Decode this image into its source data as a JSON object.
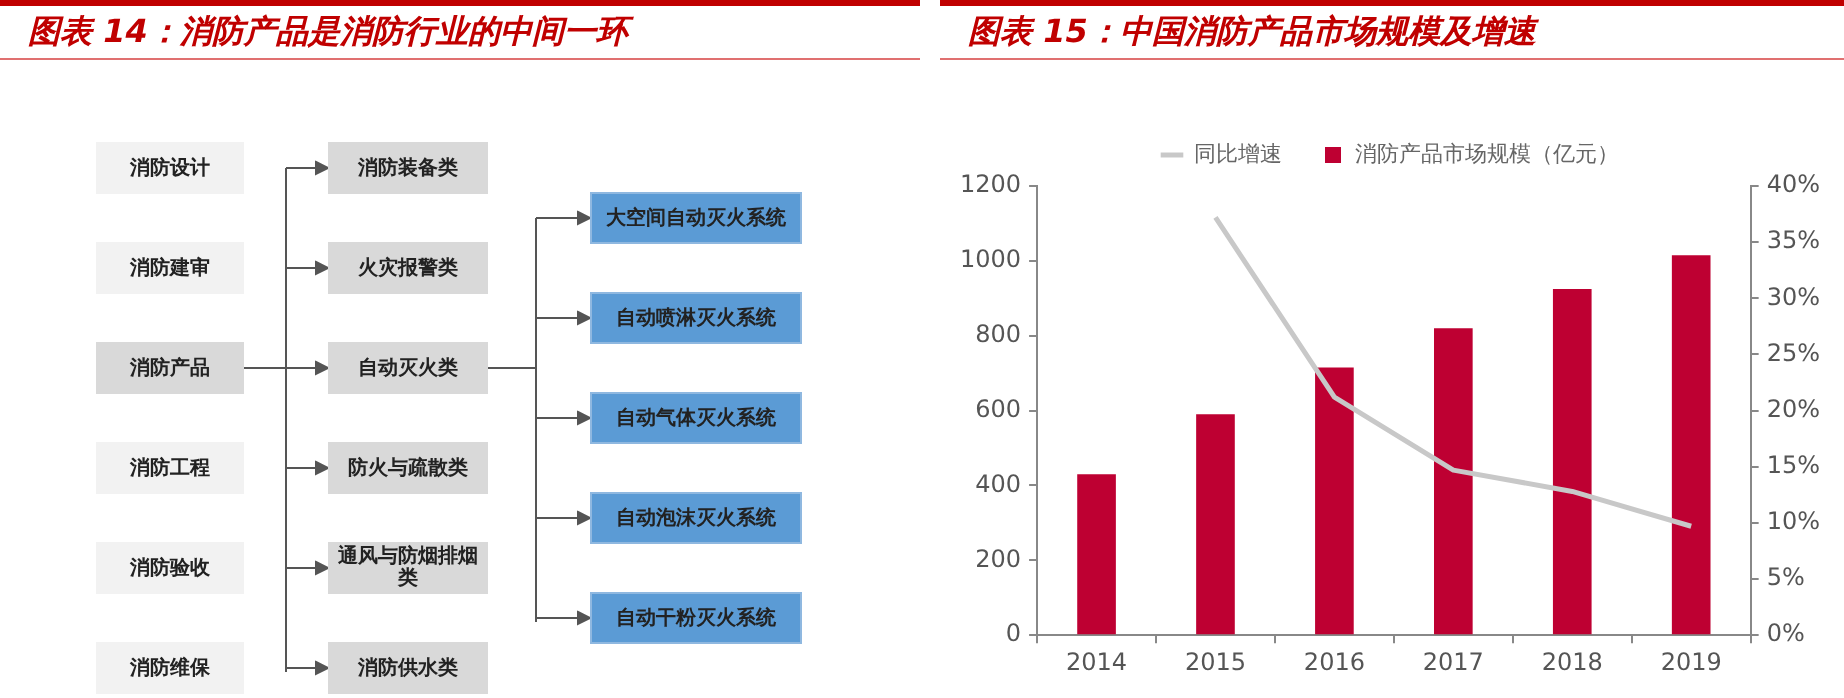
{
  "chart_data": [
    {
      "type": "other",
      "title": "图表 14：消防产品是消防行业的中间一环",
      "annotations": [
        "消防设计",
        "消防建审",
        "消防产品",
        "消防工程",
        "消防验收",
        "消防维保",
        "消防装备类",
        "火灾报警类",
        "自动灭火类",
        "防火与疏散类",
        "通风与防烟排烟类",
        "消防供水类",
        "大空间自动灭火系统",
        "自动喷淋灭火系统",
        "自动气体灭火系统",
        "自动泡沫灭火系统",
        "自动干粉灭火系统"
      ]
    },
    {
      "type": "bar",
      "title": "图表 15：中国消防产品市场规模及增速",
      "categories": [
        "2014",
        "2015",
        "2016",
        "2017",
        "2018",
        "2019"
      ],
      "series": [
        {
          "name": "消防产品市场规模（亿元）",
          "color": "#be0032",
          "values": [
            430,
            590,
            715,
            820,
            925,
            1015
          ]
        },
        {
          "name": "同比增速",
          "type": "line",
          "axis": "y2",
          "color": "#c8c8c8",
          "values": [
            null,
            37.2,
            21.2,
            14.7,
            12.8,
            9.7
          ]
        }
      ],
      "ylim": [
        0,
        1200
      ],
      "yticks": [
        0,
        200,
        400,
        600,
        800,
        1000,
        1200
      ],
      "y2lim": [
        0,
        40
      ],
      "y2ticks": [
        {
          "value": 0,
          "label": "0%"
        },
        {
          "value": 5,
          "label": "5%"
        },
        {
          "value": 10,
          "label": "10%"
        },
        {
          "value": 15,
          "label": "15%"
        },
        {
          "value": 20,
          "label": "20%"
        },
        {
          "value": 25,
          "label": "25%"
        },
        {
          "value": 30,
          "label": "30%"
        },
        {
          "value": 35,
          "label": "35%"
        },
        {
          "value": 40,
          "label": "40%"
        }
      ],
      "legend": "top",
      "marker": "none"
    }
  ]
}
